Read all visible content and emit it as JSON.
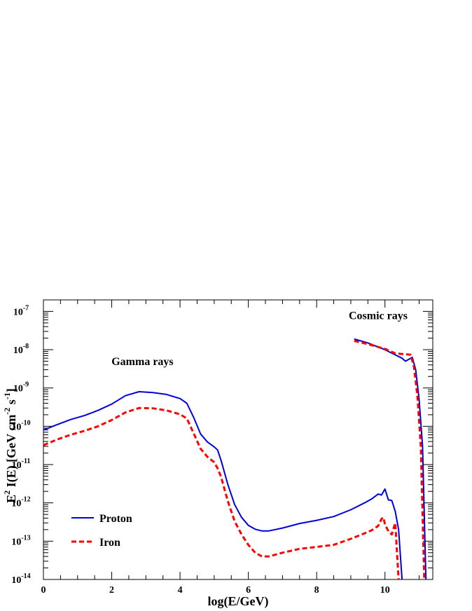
{
  "chart_data": {
    "type": "line",
    "xlabel": "log(E/GeV)",
    "ylabel": {
      "base": "E",
      "sup1": "2",
      "mid": " I(E)  [GeV cm",
      "sup2": "-2",
      "mid2": " s",
      "sup3": "-1",
      "end": "]"
    },
    "xlim": [
      0,
      11.4
    ],
    "ylim_log10": [
      -14,
      -6.7
    ],
    "y_scale": "log",
    "grid": false,
    "x_ticks": [
      {
        "value": 0,
        "label": "0"
      },
      {
        "value": 2,
        "label": "2"
      },
      {
        "value": 4,
        "label": "4"
      },
      {
        "value": 6,
        "label": "6"
      },
      {
        "value": 8,
        "label": "8"
      },
      {
        "value": 10,
        "label": "10"
      }
    ],
    "y_ticks": [
      {
        "exp": -14,
        "base": "10",
        "sup": "-14"
      },
      {
        "exp": -13,
        "base": "10",
        "sup": "-13"
      },
      {
        "exp": -12,
        "base": "10",
        "sup": "-12"
      },
      {
        "exp": -11,
        "base": "10",
        "sup": "-11"
      },
      {
        "exp": -10,
        "base": "10",
        "sup": "-10"
      },
      {
        "exp": -9,
        "base": "10",
        "sup": "-9"
      },
      {
        "exp": -8,
        "base": "10",
        "sup": "-8"
      },
      {
        "exp": -7,
        "base": "10",
        "sup": "-7"
      }
    ],
    "annotations": [
      {
        "text": "Gamma rays",
        "x": 2.9,
        "y": 4e-09
      },
      {
        "text": "Cosmic rays",
        "x": 9.8,
        "y": 6.3e-08
      }
    ],
    "legend": {
      "placement": "bottom-left"
    },
    "series": [
      {
        "name": "Proton",
        "color": "#0000dd",
        "dash": "solid",
        "segments": [
          [
            [
              0,
              8e-11
            ],
            [
              0.4,
              1.1e-10
            ],
            [
              0.8,
              1.5e-10
            ],
            [
              1.2,
              1.9e-10
            ],
            [
              1.6,
              2.6e-10
            ],
            [
              2.0,
              3.8e-10
            ],
            [
              2.4,
              6.3e-10
            ],
            [
              2.8,
              8e-10
            ],
            [
              3.2,
              7.6e-10
            ],
            [
              3.6,
              6.8e-10
            ],
            [
              4.0,
              5.3e-10
            ],
            [
              4.2,
              4e-10
            ],
            [
              4.4,
              1.7e-10
            ],
            [
              4.6,
              6.3e-11
            ],
            [
              4.8,
              3.9e-11
            ],
            [
              5.0,
              2.9e-11
            ],
            [
              5.1,
              2.4e-11
            ],
            [
              5.2,
              1.3e-11
            ],
            [
              5.4,
              3e-12
            ],
            [
              5.6,
              9e-13
            ],
            [
              5.8,
              4.2e-13
            ],
            [
              6.0,
              2.6e-13
            ],
            [
              6.2,
              2.05e-13
            ],
            [
              6.4,
              1.85e-13
            ],
            [
              6.6,
              1.85e-13
            ],
            [
              7.0,
              2.2e-13
            ],
            [
              7.5,
              2.9e-13
            ],
            [
              8.0,
              3.5e-13
            ],
            [
              8.5,
              4.4e-13
            ],
            [
              9.0,
              6.6e-13
            ],
            [
              9.4,
              1e-12
            ],
            [
              9.6,
              1.25e-12
            ],
            [
              9.8,
              1.7e-12
            ],
            [
              9.9,
              1.6e-12
            ],
            [
              10.0,
              2.3e-12
            ],
            [
              10.1,
              1.2e-12
            ],
            [
              10.2,
              1.15e-12
            ],
            [
              10.3,
              6e-13
            ],
            [
              10.4,
              2e-13
            ],
            [
              10.5,
              1e-14
            ]
          ],
          [
            [
              9.1,
              1.9e-08
            ],
            [
              9.5,
              1.5e-08
            ],
            [
              10.0,
              1e-08
            ],
            [
              10.5,
              6e-09
            ],
            [
              10.6,
              5e-09
            ],
            [
              10.8,
              6.3e-09
            ],
            [
              10.9,
              3e-09
            ],
            [
              11.0,
              5e-10
            ],
            [
              11.1,
              3e-11
            ],
            [
              11.2,
              1e-14
            ]
          ]
        ]
      },
      {
        "name": "Iron",
        "color": "#ff0000",
        "dash": "dashed",
        "segments": [
          [
            [
              0,
              3.2e-11
            ],
            [
              0.4,
              4.5e-11
            ],
            [
              0.8,
              6e-11
            ],
            [
              1.2,
              7.6e-11
            ],
            [
              1.6,
              1e-10
            ],
            [
              2.0,
              1.45e-10
            ],
            [
              2.4,
              2.3e-10
            ],
            [
              2.8,
              3e-10
            ],
            [
              3.2,
              2.95e-10
            ],
            [
              3.6,
              2.6e-10
            ],
            [
              4.0,
              2.05e-10
            ],
            [
              4.2,
              1.6e-10
            ],
            [
              4.4,
              6.5e-11
            ],
            [
              4.6,
              2.6e-11
            ],
            [
              4.8,
              1.6e-11
            ],
            [
              5.0,
              1.15e-11
            ],
            [
              5.1,
              8e-12
            ],
            [
              5.2,
              4.8e-12
            ],
            [
              5.4,
              1.1e-12
            ],
            [
              5.6,
              3.3e-13
            ],
            [
              5.8,
              1.5e-13
            ],
            [
              6.0,
              8e-14
            ],
            [
              6.2,
              5e-14
            ],
            [
              6.4,
              4e-14
            ],
            [
              6.6,
              4e-14
            ],
            [
              7.0,
              5e-14
            ],
            [
              7.5,
              6.3e-14
            ],
            [
              8.0,
              7.1e-14
            ],
            [
              8.5,
              8e-14
            ],
            [
              9.0,
              1.15e-13
            ],
            [
              9.4,
              1.6e-13
            ],
            [
              9.6,
              1.9e-13
            ],
            [
              9.8,
              2.5e-13
            ],
            [
              9.9,
              3.8e-13
            ],
            [
              9.95,
              4.2e-13
            ],
            [
              10.0,
              2.8e-13
            ],
            [
              10.1,
              1.8e-13
            ],
            [
              10.2,
              1.5e-13
            ],
            [
              10.3,
              3e-13
            ],
            [
              10.4,
              1e-14
            ]
          ],
          [
            [
              9.1,
              1.7e-08
            ],
            [
              9.5,
              1.4e-08
            ],
            [
              10.0,
              1.05e-08
            ],
            [
              10.3,
              8e-09
            ],
            [
              10.6,
              7.6e-09
            ],
            [
              10.75,
              7.4e-09
            ],
            [
              10.85,
              3.5e-09
            ],
            [
              10.95,
              6e-10
            ],
            [
              11.05,
              3e-11
            ],
            [
              11.15,
              1e-14
            ]
          ]
        ]
      }
    ]
  }
}
